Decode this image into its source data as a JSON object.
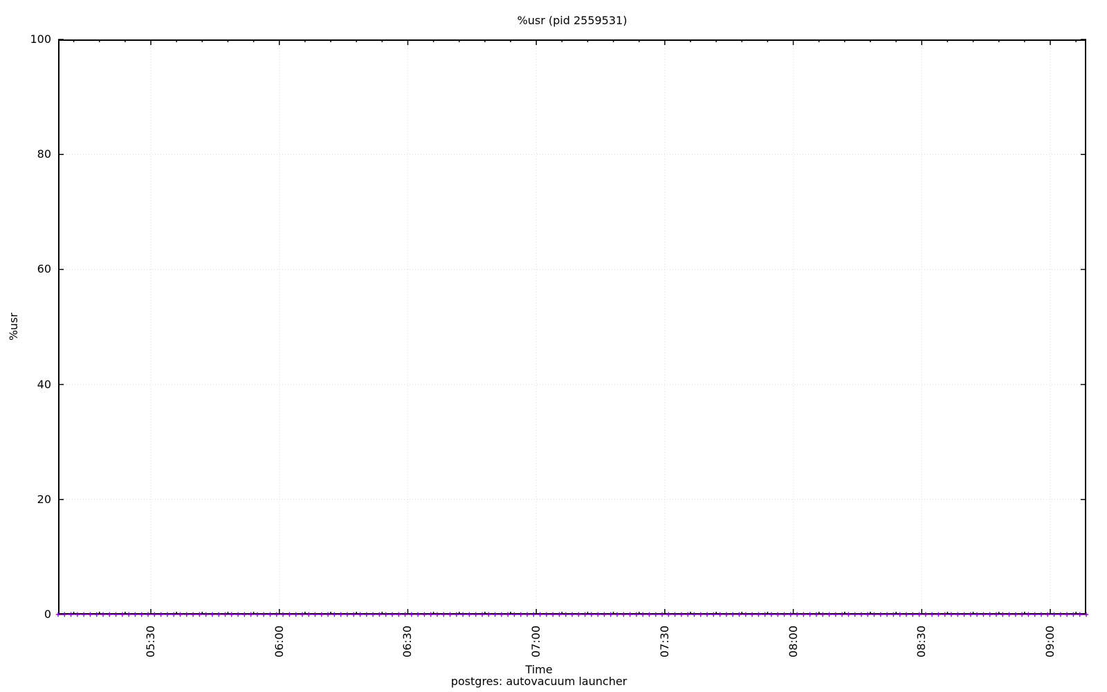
{
  "chart_data": {
    "type": "line",
    "title": "%usr (pid 2559531)",
    "xlabel": "Time",
    "ylabel": "%usr",
    "key_label": "postgres: autovacuum launcher",
    "ylim": [
      0,
      100
    ],
    "y_ticks": [
      0,
      20,
      40,
      60,
      80,
      100
    ],
    "x_tick_labels": [
      "05:30",
      "06:00",
      "06:30",
      "07:00",
      "07:30",
      "08:00",
      "08:30",
      "09:00"
    ],
    "x_minor_ticks_per_interval": 4,
    "grid": "dotted lines at major ticks, both axes",
    "legend_position": "below plot, centered, no sample line",
    "background_color": "#ffffff",
    "border_color": "#000000",
    "grid_color": "#d9d9d9",
    "x_range_estimate": [
      "05:08",
      "09:08"
    ],
    "series": [
      {
        "name": "postgres: autovacuum launcher",
        "color": "#9400d3",
        "marker": "plus",
        "style": "linespoints",
        "n_points": 161,
        "values": [
          0,
          0,
          0,
          0,
          0,
          0,
          0,
          0,
          0,
          0,
          0,
          0,
          0,
          0,
          0,
          0,
          0,
          0,
          0,
          0,
          0,
          0,
          0,
          0,
          0,
          0,
          0,
          0,
          0,
          0,
          0,
          0,
          0,
          0,
          0,
          0,
          0,
          0,
          0,
          0,
          0,
          0,
          0,
          0,
          0,
          0,
          0,
          0,
          0,
          0,
          0,
          0,
          0,
          0,
          0,
          0,
          0,
          0,
          0,
          0,
          0,
          0,
          0,
          0,
          0,
          0,
          0,
          0,
          0,
          0,
          0,
          0,
          0,
          0,
          0,
          0,
          0,
          0,
          0,
          0,
          0,
          0,
          0,
          0,
          0,
          0,
          0,
          0,
          0,
          0,
          0,
          0,
          0,
          0,
          0,
          0,
          0,
          0,
          0,
          0,
          0,
          0,
          0,
          0,
          0,
          0,
          0,
          0,
          0,
          0,
          0,
          0,
          0,
          0,
          0,
          0,
          0,
          0,
          0,
          0,
          0,
          0,
          0,
          0,
          0,
          0,
          0,
          0,
          0,
          0,
          0,
          0,
          0,
          0,
          0,
          0,
          0,
          0,
          0,
          0,
          0,
          0,
          0,
          0,
          0,
          0,
          0,
          0,
          0,
          0,
          0,
          0,
          0,
          0,
          0,
          0,
          0,
          0,
          0,
          0,
          0
        ]
      }
    ]
  }
}
